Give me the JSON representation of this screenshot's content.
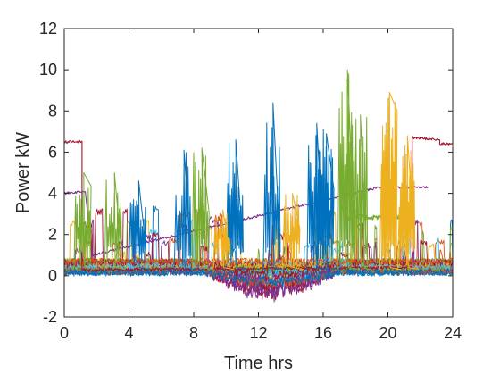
{
  "chart_data": {
    "type": "line",
    "title": "",
    "xlabel": "Time hrs",
    "ylabel": "Power kW",
    "xlim": [
      0,
      24
    ],
    "ylim": [
      -2,
      12
    ],
    "xticks": [
      0,
      4,
      8,
      12,
      16,
      20,
      24
    ],
    "yticks": [
      -2,
      0,
      2,
      4,
      6,
      8,
      10,
      12
    ],
    "x_tick_labels": [
      "0",
      "4",
      "8",
      "12",
      "16",
      "20",
      "24"
    ],
    "y_tick_labels": [
      "-2",
      "0",
      "2",
      "4",
      "6",
      "8",
      "10",
      "12"
    ],
    "grid": false,
    "legend": "none",
    "series_count": 30,
    "palette": [
      "#0072BD",
      "#D95319",
      "#EDB120",
      "#7E2F8E",
      "#77AC30",
      "#4DBEEE",
      "#A2142F"
    ],
    "highlights": [
      {
        "color": "#A2142F",
        "segments": [
          [
            0,
            6.5
          ],
          [
            1.1,
            6.5
          ],
          [
            1.1,
            0.3
          ],
          [
            21.5,
            0.4
          ],
          [
            21.5,
            6.7
          ],
          [
            23.2,
            6.6
          ],
          [
            23.2,
            6.4
          ],
          [
            24,
            6.4
          ]
        ]
      },
      {
        "color": "#7E2F8E",
        "segments": [
          [
            0,
            4.0
          ],
          [
            1.3,
            4.1
          ],
          [
            1.7,
            1.0
          ],
          [
            19.5,
            4.3
          ],
          [
            22.5,
            4.3
          ]
        ]
      },
      {
        "color": "#0072BD",
        "bursts": [
          [
            12.9,
            8.4
          ],
          [
            15.6,
            7.4
          ],
          [
            16.2,
            6.9
          ],
          [
            10.6,
            6.6
          ],
          [
            7.4,
            6.1
          ],
          [
            4.6,
            4.6
          ]
        ]
      },
      {
        "color": "#77AC30",
        "bursts": [
          [
            17.5,
            10.0
          ],
          [
            18.3,
            7.8
          ],
          [
            8.5,
            6.2
          ],
          [
            3.1,
            5.0
          ],
          [
            1.2,
            5.0
          ]
        ],
        "plateau": [
          [
            17.5,
            2.8
          ],
          [
            21.0,
            2.9
          ]
        ]
      },
      {
        "color": "#EDB120",
        "bursts": [
          [
            20.1,
            8.9
          ],
          [
            21.2,
            6.8
          ],
          [
            14.1,
            4.0
          ],
          [
            9.8,
            3.2
          ]
        ]
      }
    ],
    "negative_dip": {
      "x_range": [
        8.5,
        17.0
      ],
      "min_value": -1.3,
      "min_at": 11.7
    }
  }
}
